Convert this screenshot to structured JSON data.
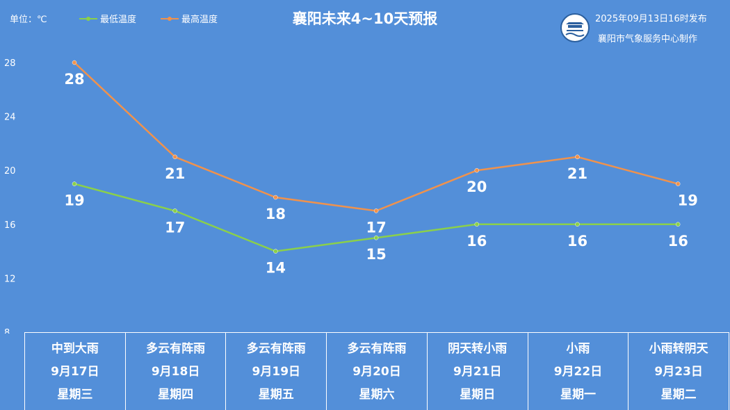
{
  "header": {
    "unit_label": "单位：℃",
    "title": "襄阳未来4~10天预报",
    "publish_time": "2025年09月13日16时发布",
    "organization": "襄阳市气象服务中心制作"
  },
  "legend": [
    {
      "name": "最低温度",
      "color": "#8bd04a"
    },
    {
      "name": "最高温度",
      "color": "#f0924c"
    }
  ],
  "colors": {
    "background": "#538fd9",
    "text": "#ffffff",
    "logo_border": "#2b5f9e"
  },
  "chart_data": {
    "type": "line",
    "categories": [
      "9月17日",
      "9月18日",
      "9月19日",
      "9月20日",
      "9月21日",
      "9月22日",
      "9月23日"
    ],
    "series": [
      {
        "name": "最低温度",
        "values": [
          19,
          17,
          14,
          15,
          16,
          16,
          16
        ],
        "color": "#8bd04a"
      },
      {
        "name": "最高温度",
        "values": [
          28,
          21,
          18,
          17,
          20,
          21,
          19
        ],
        "color": "#f0924c"
      }
    ],
    "ylabel": "单位：℃",
    "ylim": [
      8,
      30
    ],
    "yticks": [
      "8",
      "12",
      "16",
      "20",
      "24",
      "28"
    ],
    "grid": false,
    "legend_position": "top-left"
  },
  "days": [
    {
      "weather": "中到大雨",
      "date": "9月17日",
      "weekday": "星期三"
    },
    {
      "weather": "多云有阵雨",
      "date": "9月18日",
      "weekday": "星期四"
    },
    {
      "weather": "多云有阵雨",
      "date": "9月19日",
      "weekday": "星期五"
    },
    {
      "weather": "多云有阵雨",
      "date": "9月20日",
      "weekday": "星期六"
    },
    {
      "weather": "阴天转小雨",
      "date": "9月21日",
      "weekday": "星期日"
    },
    {
      "weather": "小雨",
      "date": "9月22日",
      "weekday": "星期一"
    },
    {
      "weather": "小雨转阴天",
      "date": "9月23日",
      "weekday": "星期二"
    }
  ]
}
